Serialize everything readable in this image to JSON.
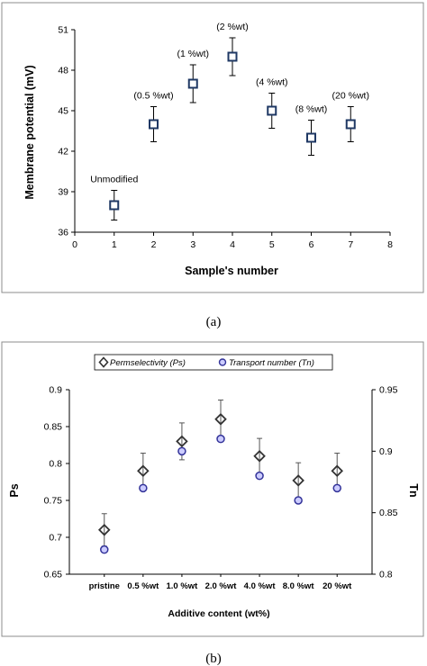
{
  "captions": {
    "a": "(a)",
    "b": "(b)"
  },
  "chart_data": [
    {
      "type": "scatter",
      "xlabel": "Sample's number",
      "ylabel": "Membrane potential (mV)",
      "xlim": [
        0,
        8
      ],
      "ylim": [
        36,
        51
      ],
      "xticks": [
        "0",
        "1",
        "2",
        "3",
        "4",
        "5",
        "6",
        "7",
        "8"
      ],
      "yticks": [
        "36",
        "39",
        "42",
        "45",
        "48",
        "51"
      ],
      "grid": false,
      "marker": "square",
      "points": [
        {
          "x": 1,
          "y": 38,
          "err": 1.1,
          "label": "Unmodified"
        },
        {
          "x": 2,
          "y": 44,
          "err": 1.3,
          "label": "(0.5 %wt)"
        },
        {
          "x": 3,
          "y": 47,
          "err": 1.4,
          "label": "(1 %wt)"
        },
        {
          "x": 4,
          "y": 49,
          "err": 1.4,
          "label": "(2 %wt)"
        },
        {
          "x": 5,
          "y": 45,
          "err": 1.3,
          "label": "(4 %wt)"
        },
        {
          "x": 6,
          "y": 43,
          "err": 1.3,
          "label": "(8 %wt)"
        },
        {
          "x": 7,
          "y": 44,
          "err": 1.3,
          "label": "(20 %wt)"
        }
      ]
    },
    {
      "type": "scatter",
      "xlabel": "Additive content (wt%)",
      "ylabel": "Ps",
      "y2label": "Tn",
      "categories": [
        "pristine",
        "0.5 %wt",
        "1.0 %wt",
        "2.0 %wt",
        "4.0 %wt",
        "8.0 %wt",
        "20 %wt"
      ],
      "ylim": [
        0.65,
        0.9
      ],
      "y2lim": [
        0.8,
        0.95
      ],
      "yticks": [
        "0.65",
        "0.7",
        "0.75",
        "0.8",
        "0.85",
        "0.9"
      ],
      "y2ticks": [
        "0.8",
        "0.85",
        "0.9",
        "0.95"
      ],
      "legend_position": "top",
      "grid": false,
      "series": [
        {
          "name": "Permselectivity (Ps)",
          "marker": "diamond",
          "axis": "left",
          "values": [
            0.71,
            0.79,
            0.83,
            0.86,
            0.81,
            0.777,
            0.79
          ],
          "err": [
            0.022,
            0.024,
            0.025,
            0.026,
            0.024,
            0.024,
            0.024
          ]
        },
        {
          "name": "Transport number (Tn)",
          "marker": "circle",
          "axis": "right",
          "values": [
            0.82,
            0.87,
            0.9,
            0.91,
            0.88,
            0.86,
            0.87
          ],
          "err": [
            0,
            0,
            0,
            0,
            0,
            0,
            0
          ]
        }
      ]
    }
  ]
}
